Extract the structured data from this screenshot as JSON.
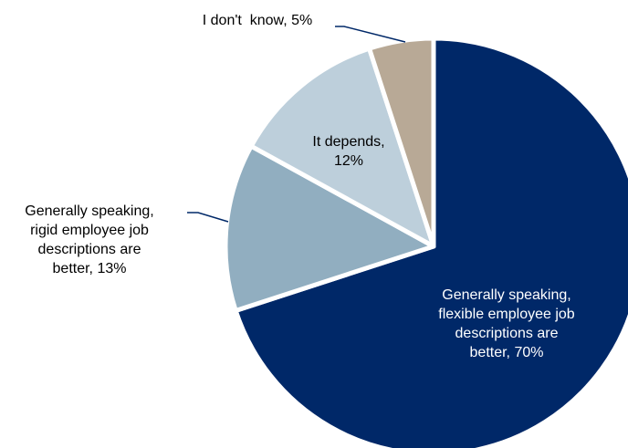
{
  "chart_data": {
    "type": "pie",
    "title": "",
    "start_angle_deg": 0,
    "direction": "clockwise",
    "slices": [
      {
        "label_lines": [
          "Generally speaking,",
          "flexible employee job",
          "descriptions are",
          "better, 70%"
        ],
        "value": 70,
        "color": "#002868",
        "label_color": "#ffffff",
        "label_placement": "inside"
      },
      {
        "label_lines": [
          "Generally speaking,",
          "rigid employee job",
          "descriptions are",
          "better, 13%"
        ],
        "value": 13,
        "color": "#91AEC0",
        "label_color": "#000000",
        "label_placement": "outside-left"
      },
      {
        "label_lines": [
          "It depends,",
          "12%"
        ],
        "value": 12,
        "color": "#BDCFDB",
        "label_color": "#000000",
        "label_placement": "inside"
      },
      {
        "label_lines": [
          "I don't  know, 5%"
        ],
        "value": 5,
        "color": "#B8A996",
        "label_color": "#000000",
        "label_placement": "outside-top"
      }
    ],
    "leader_line_color": "#002868"
  }
}
